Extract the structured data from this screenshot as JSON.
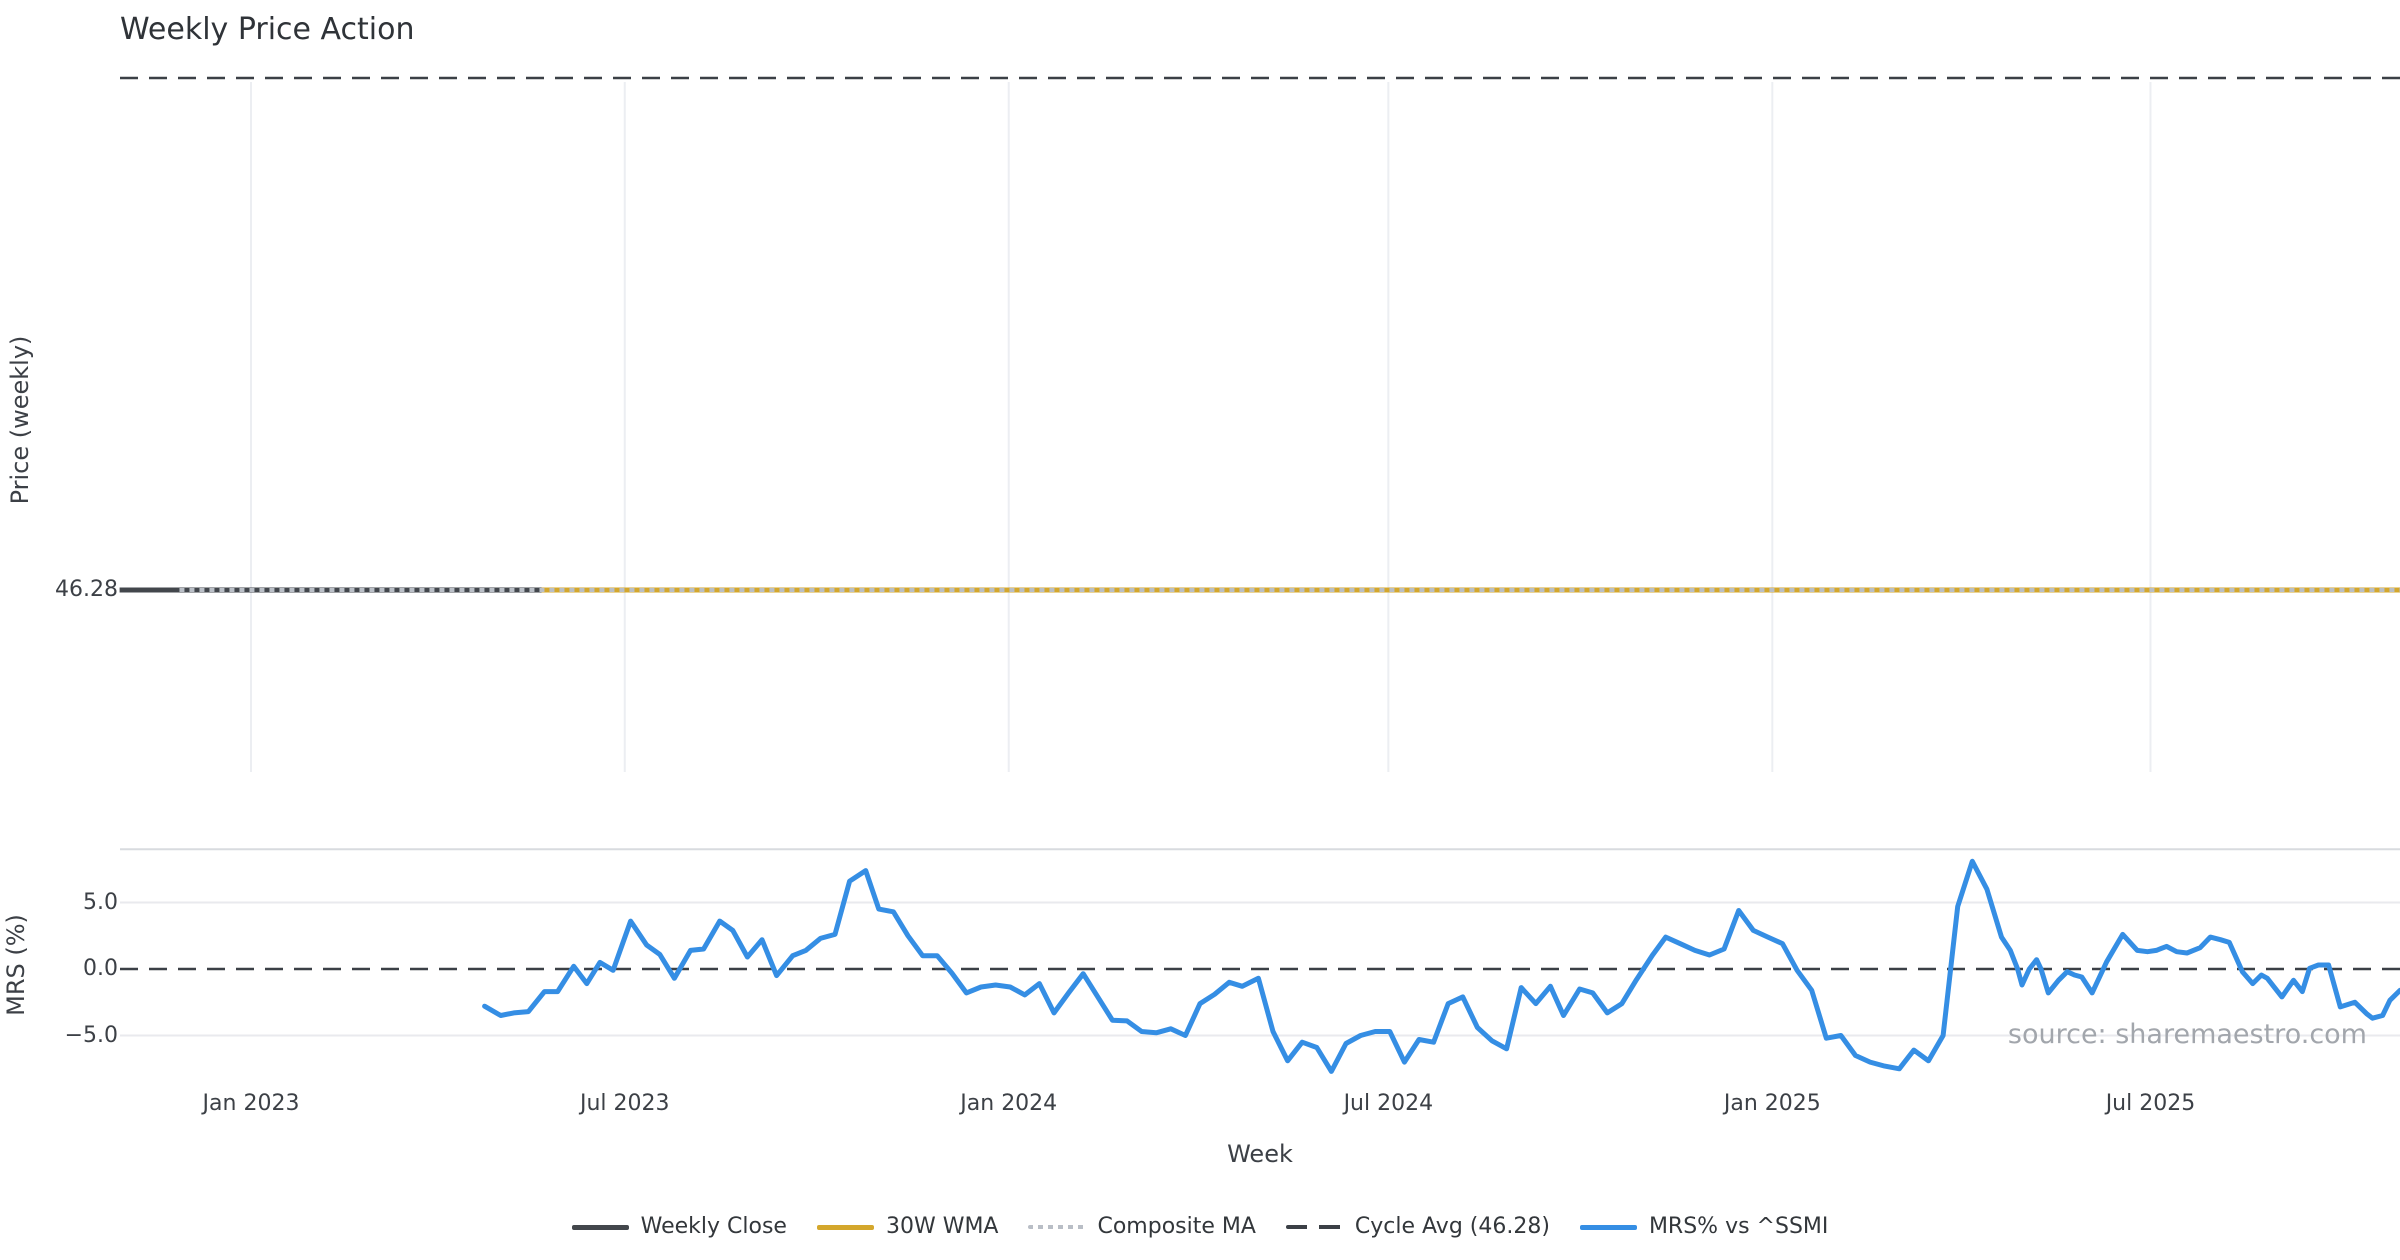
{
  "title": "Weekly Price Action",
  "source_note": "source: sharemaestro.com",
  "colors": {
    "weekly_close": "#43474c",
    "wma_30w": "#d4a72c",
    "composite_ma": "#b9bec6",
    "cycle_avg": "#3b4046",
    "mrs": "#358ee4",
    "grid_vertical": "#eceef2",
    "grid_horizontal": "#e9eaee",
    "panel_border": "#d8dbdf",
    "text": "#3c4046",
    "muted_text": "#a2a6ac"
  },
  "legend": {
    "items": [
      {
        "label": "Weekly Close",
        "style": "solid",
        "color_key": "weekly_close"
      },
      {
        "label": "30W WMA",
        "style": "solid",
        "color_key": "wma_30w"
      },
      {
        "label": "Composite MA",
        "style": "dotted",
        "color_key": "composite_ma"
      },
      {
        "label": "Cycle Avg (46.28)",
        "style": "dashed",
        "color_key": "cycle_avg"
      },
      {
        "label": "MRS% vs ^SSMI",
        "style": "solid",
        "color_key": "mrs"
      }
    ]
  },
  "chart_data": [
    {
      "type": "line",
      "panel": "price",
      "title": "Weekly Price Action",
      "ylabel": "Price (weekly)",
      "y_ticks": [
        {
          "value": 46.28,
          "label": "46.28"
        }
      ],
      "note": "All price series are flat at 46.28; a dashed cycle-average guide line also runs along the top of the panel.",
      "series": [
        {
          "name": "Weekly Close",
          "style": "solid",
          "color_key": "weekly_close",
          "value": 46.28,
          "x_start_week": -9.0,
          "x_end_week": 147.2
        },
        {
          "name": "30W WMA",
          "style": "solid",
          "color_key": "wma_30w",
          "value": 46.28,
          "x_start_week": 19.9,
          "x_end_week": 147.2
        },
        {
          "name": "Composite MA",
          "style": "dotted",
          "color_key": "composite_ma",
          "value": 46.28,
          "x_start_week": -4.9,
          "x_end_week": 147.2
        },
        {
          "name": "Cycle Avg",
          "style": "dashed",
          "color_key": "cycle_avg",
          "value": 46.28,
          "x_start_week": -9.0,
          "x_end_week": 147.2
        }
      ]
    },
    {
      "type": "line",
      "panel": "mrs",
      "xlabel": "Week",
      "ylabel": "MRS (%)",
      "ylim": [
        -8.8,
        9.0
      ],
      "xlim_weeks": [
        -9.0,
        147.2
      ],
      "zero_line": 0.0,
      "grid": true,
      "y_ticks": [
        {
          "value": 5.0,
          "label": "5.0"
        },
        {
          "value": 0.0,
          "label": "0.0"
        },
        {
          "value": -5.0,
          "label": "−5.0"
        }
      ],
      "x_ticks": [
        {
          "week": 0.0,
          "label": "Jan 2023"
        },
        {
          "week": 25.6,
          "label": "Jul 2023"
        },
        {
          "week": 51.9,
          "label": "Jan 2024"
        },
        {
          "week": 77.9,
          "label": "Jul 2024"
        },
        {
          "week": 104.2,
          "label": "Jan 2025"
        },
        {
          "week": 130.1,
          "label": "Jul 2025"
        }
      ],
      "series": [
        {
          "name": "MRS% vs ^SSMI",
          "color_key": "mrs",
          "x_unit": "weeks since Jan 2023",
          "points": [
            [
              16.0,
              -2.8
            ],
            [
              17.1,
              -3.5
            ],
            [
              18.0,
              -3.3
            ],
            [
              19.0,
              -3.2
            ],
            [
              20.1,
              -1.7
            ],
            [
              21.0,
              -1.7
            ],
            [
              22.1,
              0.2
            ],
            [
              23.0,
              -1.1
            ],
            [
              23.9,
              0.5
            ],
            [
              24.8,
              -0.1
            ],
            [
              26.0,
              3.6
            ],
            [
              27.1,
              1.8
            ],
            [
              28.0,
              1.1
            ],
            [
              29.0,
              -0.7
            ],
            [
              30.1,
              1.4
            ],
            [
              31.0,
              1.5
            ],
            [
              32.1,
              3.6
            ],
            [
              33.0,
              2.9
            ],
            [
              34.0,
              0.9
            ],
            [
              35.0,
              2.2
            ],
            [
              36.0,
              -0.5
            ],
            [
              37.1,
              1.0
            ],
            [
              38.0,
              1.4
            ],
            [
              39.0,
              2.3
            ],
            [
              40.0,
              2.6
            ],
            [
              41.0,
              6.6
            ],
            [
              42.1,
              7.4
            ],
            [
              43.0,
              4.5
            ],
            [
              44.0,
              4.3
            ],
            [
              45.0,
              2.5
            ],
            [
              46.0,
              1.0
            ],
            [
              47.0,
              1.0
            ],
            [
              48.0,
              -0.3
            ],
            [
              49.0,
              -1.8
            ],
            [
              50.0,
              -1.35
            ],
            [
              51.0,
              -1.2
            ],
            [
              52.0,
              -1.35
            ],
            [
              53.0,
              -1.95
            ],
            [
              54.0,
              -1.1
            ],
            [
              55.0,
              -3.3
            ],
            [
              56.0,
              -1.8
            ],
            [
              57.0,
              -0.35
            ],
            [
              58.0,
              -2.1
            ],
            [
              59.0,
              -3.85
            ],
            [
              60.0,
              -3.9
            ],
            [
              61.0,
              -4.7
            ],
            [
              62.0,
              -4.8
            ],
            [
              63.0,
              -4.5
            ],
            [
              64.0,
              -5.0
            ],
            [
              65.0,
              -2.6
            ],
            [
              66.0,
              -1.9
            ],
            [
              67.0,
              -1.0
            ],
            [
              67.9,
              -1.3
            ],
            [
              69.0,
              -0.7
            ],
            [
              70.0,
              -4.7
            ],
            [
              71.0,
              -6.9
            ],
            [
              72.0,
              -5.5
            ],
            [
              73.0,
              -5.9
            ],
            [
              74.0,
              -7.7
            ],
            [
              75.0,
              -5.6
            ],
            [
              76.0,
              -5.0
            ],
            [
              77.0,
              -4.7
            ],
            [
              78.0,
              -4.7
            ],
            [
              79.0,
              -7.0
            ],
            [
              80.0,
              -5.3
            ],
            [
              81.0,
              -5.5
            ],
            [
              82.0,
              -2.6
            ],
            [
              83.0,
              -2.1
            ],
            [
              84.0,
              -4.4
            ],
            [
              85.0,
              -5.4
            ],
            [
              86.0,
              -6.0
            ],
            [
              87.0,
              -1.4
            ],
            [
              88.0,
              -2.6
            ],
            [
              89.0,
              -1.3
            ],
            [
              89.9,
              -3.5
            ],
            [
              91.0,
              -1.5
            ],
            [
              91.9,
              -1.8
            ],
            [
              92.9,
              -3.3
            ],
            [
              93.9,
              -2.6
            ],
            [
              94.9,
              -0.8
            ],
            [
              96.0,
              1.05
            ],
            [
              96.9,
              2.4
            ],
            [
              97.9,
              1.9
            ],
            [
              98.9,
              1.4
            ],
            [
              99.9,
              1.05
            ],
            [
              100.9,
              1.5
            ],
            [
              101.9,
              4.4
            ],
            [
              102.9,
              2.9
            ],
            [
              103.9,
              2.4
            ],
            [
              104.9,
              1.9
            ],
            [
              105.9,
              -0.1
            ],
            [
              106.9,
              -1.6
            ],
            [
              107.9,
              -5.2
            ],
            [
              108.9,
              -5.0
            ],
            [
              109.9,
              -6.5
            ],
            [
              110.9,
              -7.0
            ],
            [
              111.9,
              -7.3
            ],
            [
              112.9,
              -7.5
            ],
            [
              113.9,
              -6.1
            ],
            [
              114.9,
              -6.9
            ],
            [
              115.9,
              -5.0
            ],
            [
              116.9,
              4.7
            ],
            [
              117.9,
              8.1
            ],
            [
              118.9,
              6.0
            ],
            [
              119.9,
              2.4
            ],
            [
              120.5,
              1.4
            ],
            [
              121.0,
              0.0
            ],
            [
              121.3,
              -1.2
            ],
            [
              121.8,
              0.0
            ],
            [
              122.3,
              0.7
            ],
            [
              122.6,
              0.0
            ],
            [
              123.1,
              -1.8
            ],
            [
              123.8,
              -0.85
            ],
            [
              124.4,
              -0.2
            ],
            [
              124.9,
              -0.45
            ],
            [
              125.4,
              -0.6
            ],
            [
              126.1,
              -1.8
            ],
            [
              127.1,
              0.55
            ],
            [
              128.2,
              2.6
            ],
            [
              129.2,
              1.4
            ],
            [
              129.9,
              1.3
            ],
            [
              130.5,
              1.4
            ],
            [
              131.2,
              1.7
            ],
            [
              131.9,
              1.3
            ],
            [
              132.6,
              1.2
            ],
            [
              133.5,
              1.6
            ],
            [
              134.2,
              2.4
            ],
            [
              134.9,
              2.2
            ],
            [
              135.5,
              2.0
            ],
            [
              136.4,
              -0.2
            ],
            [
              137.1,
              -1.1
            ],
            [
              137.7,
              -0.45
            ],
            [
              138.1,
              -0.7
            ],
            [
              139.1,
              -2.1
            ],
            [
              139.9,
              -0.85
            ],
            [
              140.5,
              -1.7
            ],
            [
              141.0,
              0.05
            ],
            [
              141.6,
              0.3
            ],
            [
              142.3,
              0.3
            ],
            [
              143.1,
              -2.85
            ],
            [
              144.1,
              -2.5
            ],
            [
              144.9,
              -3.35
            ],
            [
              145.3,
              -3.7
            ],
            [
              146.0,
              -3.5
            ],
            [
              146.5,
              -2.35
            ],
            [
              147.2,
              -1.6
            ]
          ]
        }
      ]
    }
  ]
}
